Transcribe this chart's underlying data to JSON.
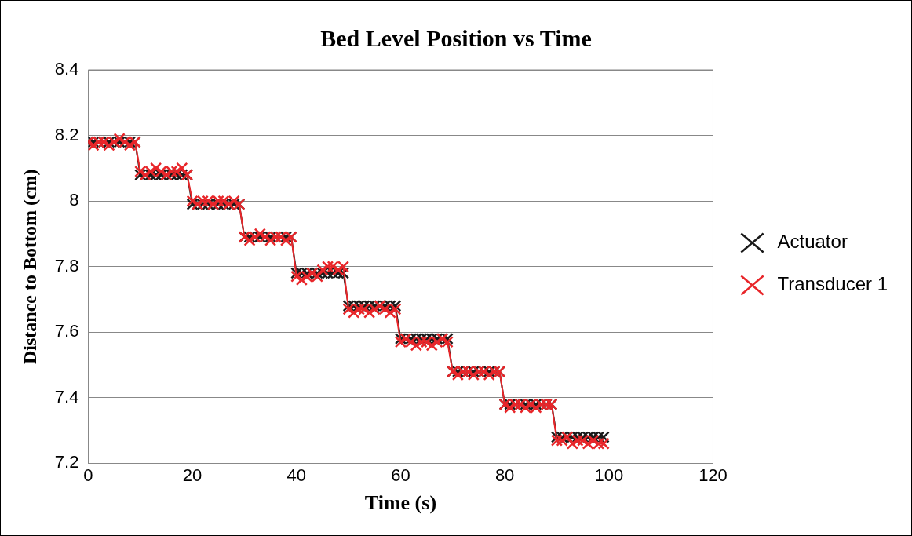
{
  "chart_data": {
    "type": "line",
    "title": "Bed Level Position vs Time",
    "xlabel": "Time (s)",
    "ylabel": "Distance to Bottom (cm)",
    "x": [
      0,
      1,
      2,
      3,
      4,
      5,
      6,
      7,
      8,
      9,
      10,
      11,
      12,
      13,
      14,
      15,
      16,
      17,
      18,
      19,
      20,
      21,
      22,
      23,
      24,
      25,
      26,
      27,
      28,
      29,
      30,
      31,
      32,
      33,
      34,
      35,
      36,
      37,
      38,
      39,
      40,
      41,
      42,
      43,
      44,
      45,
      46,
      47,
      48,
      49,
      50,
      51,
      52,
      53,
      54,
      55,
      56,
      57,
      58,
      59,
      60,
      61,
      62,
      63,
      64,
      65,
      66,
      67,
      68,
      69,
      70,
      71,
      72,
      73,
      74,
      75,
      76,
      77,
      78,
      79,
      80,
      81,
      82,
      83,
      84,
      85,
      86,
      87,
      88,
      89,
      90,
      91,
      92,
      93,
      94,
      95,
      96,
      97,
      98,
      99
    ],
    "series": [
      {
        "name": "Actuator",
        "color": "#1a1a1a",
        "values": [
          8.18,
          8.18,
          8.18,
          8.18,
          8.18,
          8.18,
          8.18,
          8.18,
          8.18,
          8.18,
          8.08,
          8.08,
          8.08,
          8.08,
          8.08,
          8.08,
          8.08,
          8.08,
          8.08,
          8.08,
          7.99,
          7.99,
          7.99,
          7.99,
          7.99,
          7.99,
          7.99,
          7.99,
          7.99,
          7.99,
          7.89,
          7.89,
          7.89,
          7.89,
          7.89,
          7.89,
          7.89,
          7.89,
          7.89,
          7.89,
          7.78,
          7.78,
          7.78,
          7.78,
          7.78,
          7.78,
          7.78,
          7.78,
          7.78,
          7.78,
          7.68,
          7.68,
          7.68,
          7.68,
          7.68,
          7.68,
          7.68,
          7.68,
          7.68,
          7.68,
          7.58,
          7.58,
          7.58,
          7.58,
          7.58,
          7.58,
          7.58,
          7.58,
          7.58,
          7.58,
          7.48,
          7.48,
          7.48,
          7.48,
          7.48,
          7.48,
          7.48,
          7.48,
          7.48,
          7.48,
          7.38,
          7.38,
          7.38,
          7.38,
          7.38,
          7.38,
          7.38,
          7.38,
          7.38,
          7.38,
          7.28,
          7.28,
          7.28,
          7.28,
          7.28,
          7.28,
          7.28,
          7.28,
          7.28,
          7.28
        ]
      },
      {
        "name": "Transducer 1",
        "color": "#e8262a",
        "values": [
          8.18,
          8.17,
          8.18,
          8.18,
          8.17,
          8.18,
          8.19,
          8.18,
          8.17,
          8.18,
          8.09,
          8.08,
          8.09,
          8.1,
          8.09,
          8.08,
          8.09,
          8.09,
          8.1,
          8.08,
          8.0,
          7.99,
          8.0,
          8.0,
          7.99,
          8.0,
          8.0,
          7.99,
          8.0,
          7.99,
          7.89,
          7.88,
          7.89,
          7.9,
          7.89,
          7.88,
          7.89,
          7.89,
          7.88,
          7.89,
          7.77,
          7.76,
          7.77,
          7.78,
          7.77,
          7.79,
          7.8,
          7.8,
          7.79,
          7.8,
          7.67,
          7.66,
          7.67,
          7.67,
          7.66,
          7.67,
          7.68,
          7.67,
          7.66,
          7.67,
          7.57,
          7.58,
          7.57,
          7.56,
          7.57,
          7.57,
          7.56,
          7.57,
          7.58,
          7.57,
          7.48,
          7.47,
          7.48,
          7.48,
          7.47,
          7.48,
          7.48,
          7.47,
          7.48,
          7.48,
          7.38,
          7.37,
          7.38,
          7.38,
          7.37,
          7.38,
          7.37,
          7.38,
          7.38,
          7.38,
          7.27,
          7.27,
          7.28,
          7.26,
          7.27,
          7.27,
          7.26,
          7.27,
          7.26,
          7.26
        ]
      }
    ],
    "xlim": [
      0,
      120
    ],
    "xticks": [
      0,
      20,
      40,
      60,
      80,
      100,
      120
    ],
    "ylim": [
      7.2,
      8.4
    ],
    "yticks": [
      7.2,
      7.4,
      7.6,
      7.8,
      8,
      8.2,
      8.4
    ],
    "grid": "y",
    "legend": "right",
    "marker": "cross"
  }
}
